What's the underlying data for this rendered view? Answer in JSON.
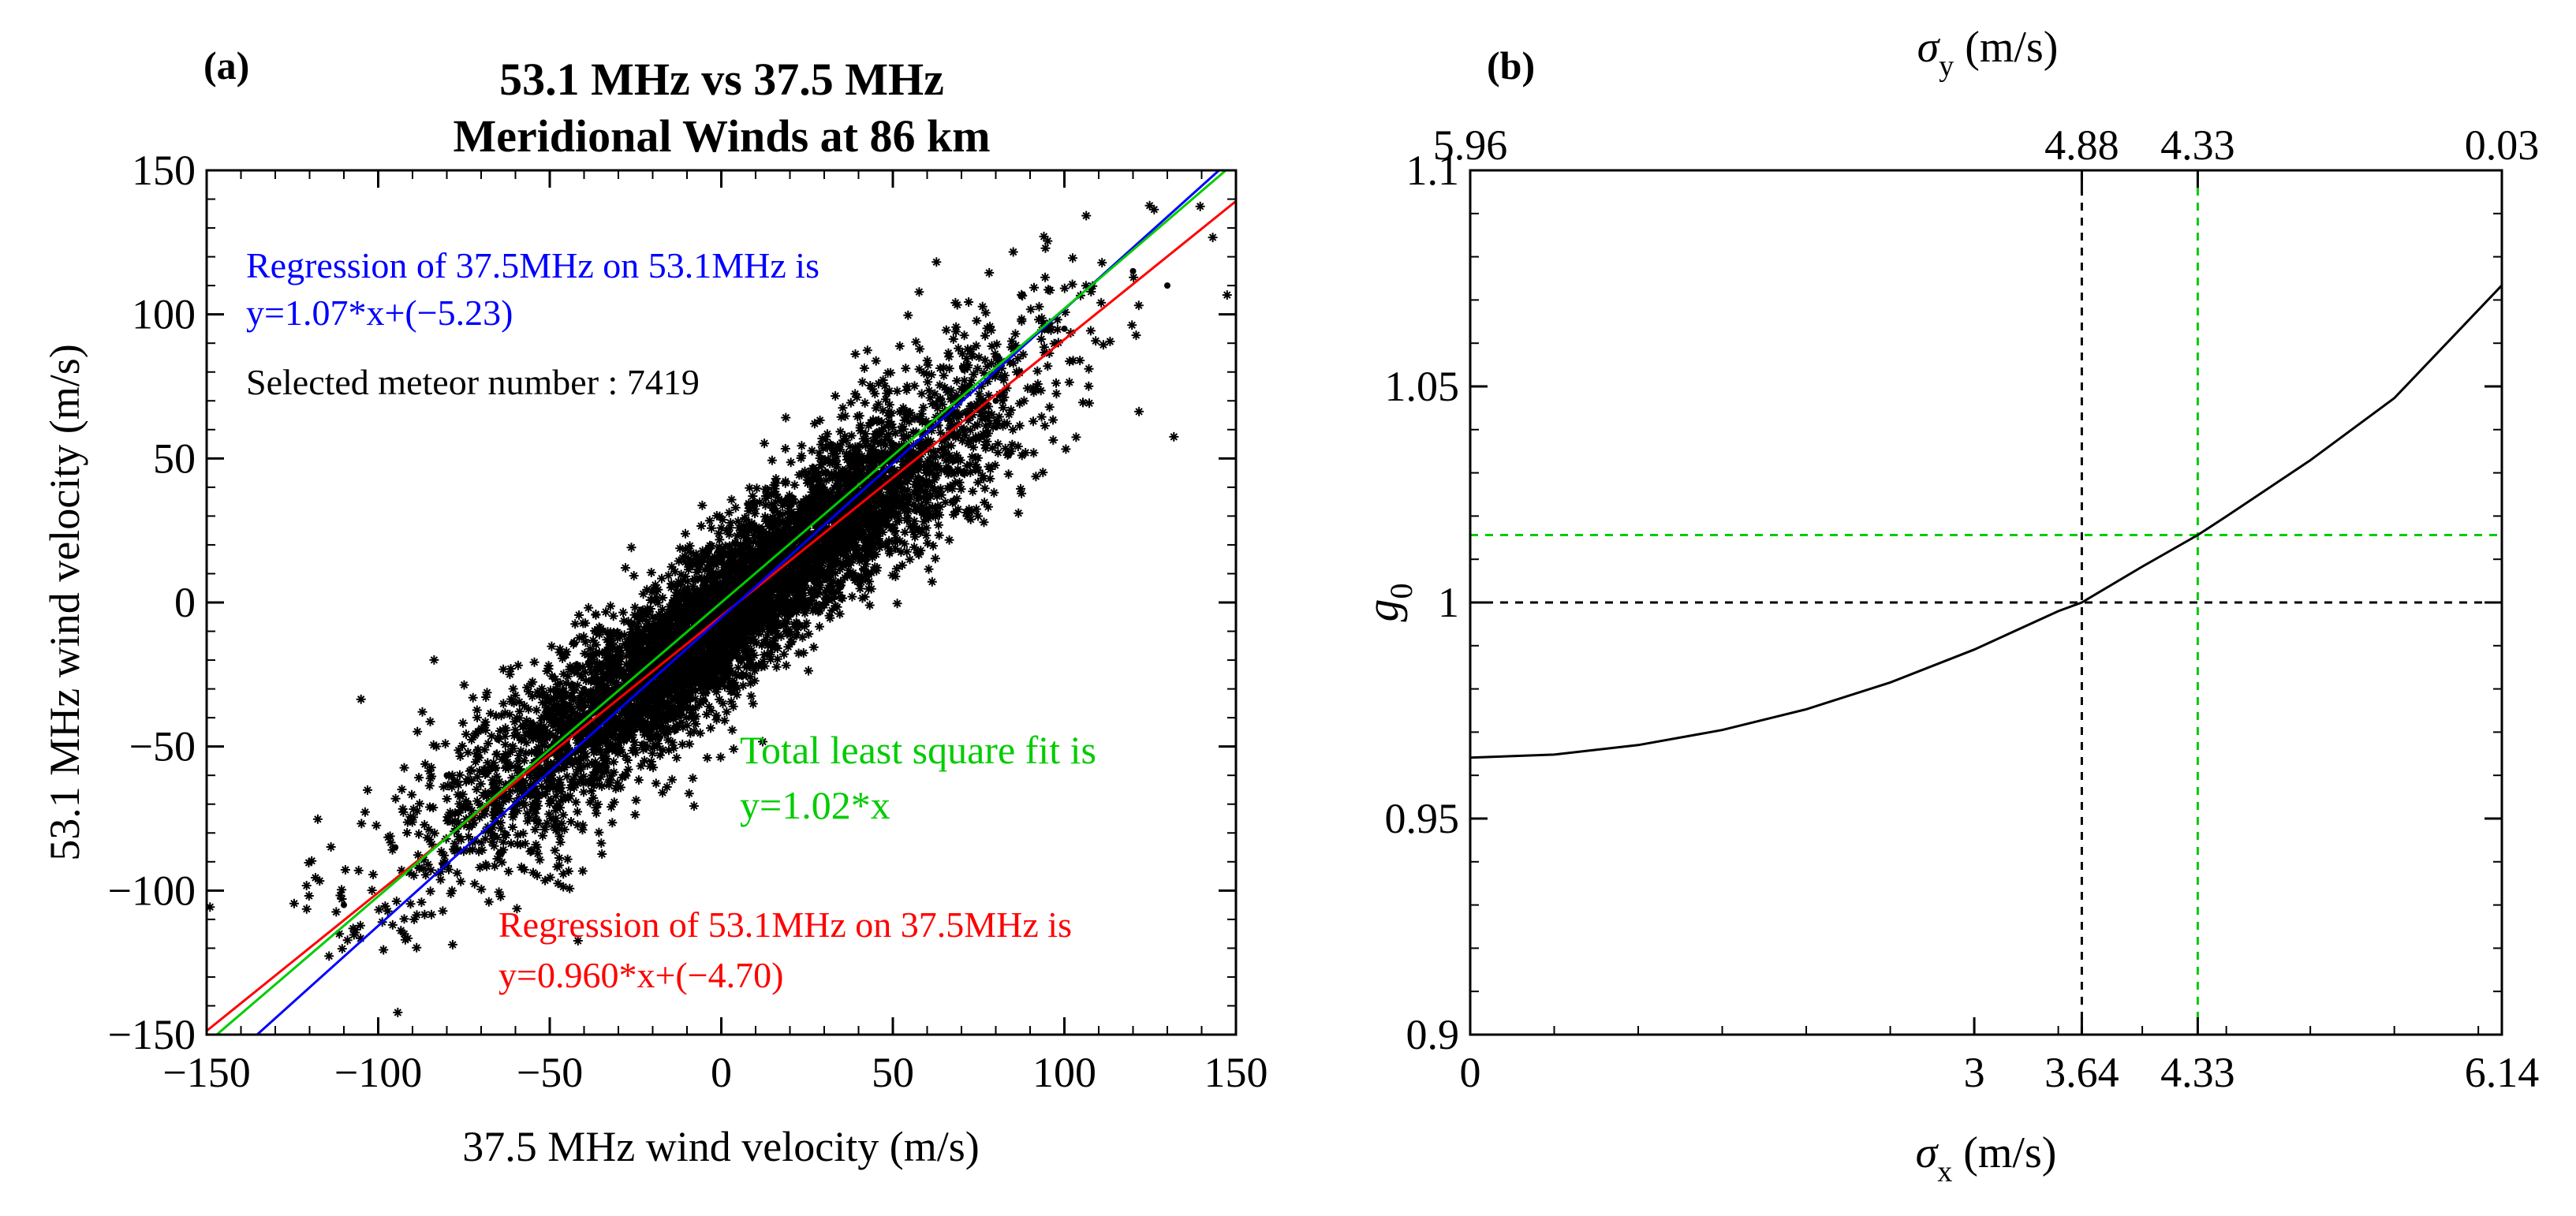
{
  "chart_data": [
    {
      "type": "scatter",
      "panel_label": "(a)",
      "title_line1": "53.1 MHz vs 37.5 MHz",
      "title_line2": "Meridional Winds at 86 km",
      "xlabel": "37.5 MHz wind velocity (m/s)",
      "ylabel": "53.1 MHz wind velocity (m/s)",
      "xlim": [
        -150,
        150
      ],
      "ylim": [
        -150,
        150
      ],
      "xticks": [
        -150,
        -100,
        -50,
        0,
        50,
        100,
        150
      ],
      "yticks": [
        -150,
        -100,
        -50,
        0,
        50,
        100,
        150
      ],
      "xtick_labels": [
        "−150",
        "−100",
        "−50",
        "0",
        "50",
        "100",
        "150"
      ],
      "ytick_labels": [
        "−150",
        "−100",
        "−50",
        "0",
        "50",
        "100",
        "150"
      ],
      "n_points": 7419,
      "scatter_description": "dense cloud of meteor wind pairs along the diagonal",
      "scatter_sample": [
        {
          "x": -110,
          "y": -105
        },
        {
          "x": -95,
          "y": -85
        },
        {
          "x": -80,
          "y": -60
        },
        {
          "x": -60,
          "y": -70
        },
        {
          "x": -40,
          "y": -30
        },
        {
          "x": -20,
          "y": -25
        },
        {
          "x": 0,
          "y": -5
        },
        {
          "x": 20,
          "y": 15
        },
        {
          "x": 40,
          "y": 35
        },
        {
          "x": 60,
          "y": 55
        },
        {
          "x": 80,
          "y": 70
        },
        {
          "x": 100,
          "y": 95
        },
        {
          "x": 120,
          "y": 115
        },
        {
          "x": 130,
          "y": 110
        }
      ],
      "series": [
        {
          "name": "Regression of 53.1MHz on 37.5MHz",
          "color": "#ff0000",
          "slope": 0.96,
          "intercept": -4.7
        },
        {
          "name": "Regression of 37.5MHz on 53.1MHz",
          "color": "#0000ff",
          "slope": 1.07,
          "intercept": -5.23
        },
        {
          "name": "Total least square fit",
          "color": "#00cc00",
          "slope": 1.02,
          "intercept": 0
        }
      ],
      "annotations": {
        "blue_line1": "Regression of 37.5MHz on 53.1MHz is",
        "blue_line2": "y=1.07*x+(−5.23)",
        "count_text": "Selected meteor number : 7419",
        "green_line1": "Total least square fit is",
        "green_line2": "y=1.02*x",
        "red_line1": "Regression of 53.1MHz on 37.5MHz is",
        "red_line2": "y=0.960*x+(−4.70)"
      }
    },
    {
      "type": "line",
      "panel_label": "(b)",
      "xlabel_sym": "σ",
      "xlabel_sub": "x",
      "xlabel_unit": " (m/s)",
      "top_label_sym": "σ",
      "top_label_sub": "y",
      "top_label_unit": " (m/s)",
      "ylabel_sym": "g",
      "ylabel_sub": "0",
      "xlim": [
        0,
        6.14
      ],
      "ylim": [
        0.9,
        1.1
      ],
      "xticks": [
        0,
        3,
        3.64,
        4.33,
        6.14
      ],
      "xtick_labels": [
        "0",
        "3",
        "3.64",
        "4.33",
        "6.14"
      ],
      "top_ticks": [
        {
          "x": 0,
          "label": "5.96"
        },
        {
          "x": 3.64,
          "label": "4.88"
        },
        {
          "x": 4.33,
          "label": "4.33"
        },
        {
          "x": 6.14,
          "label": "0.03"
        }
      ],
      "yticks": [
        0.9,
        0.95,
        1.0,
        1.05,
        1.1
      ],
      "ytick_labels": [
        "0.9",
        "0.95",
        "1",
        "1.05",
        "1.1"
      ],
      "curve": {
        "x": [
          0,
          0.5,
          1.0,
          1.5,
          2.0,
          2.5,
          3.0,
          3.5,
          3.64,
          4.0,
          4.33,
          4.5,
          5.0,
          5.5,
          6.14
        ],
        "y": [
          0.9641,
          0.9648,
          0.967,
          0.9705,
          0.9753,
          0.9815,
          0.9891,
          0.998,
          1.0,
          1.0083,
          1.0156,
          1.0199,
          1.0329,
          1.0473,
          1.0734
        ]
      },
      "reference_lines": [
        {
          "color": "#000000",
          "x": 3.64,
          "y": 1.0
        },
        {
          "color": "#00cc00",
          "x": 4.33,
          "y": 1.0156
        }
      ]
    }
  ]
}
